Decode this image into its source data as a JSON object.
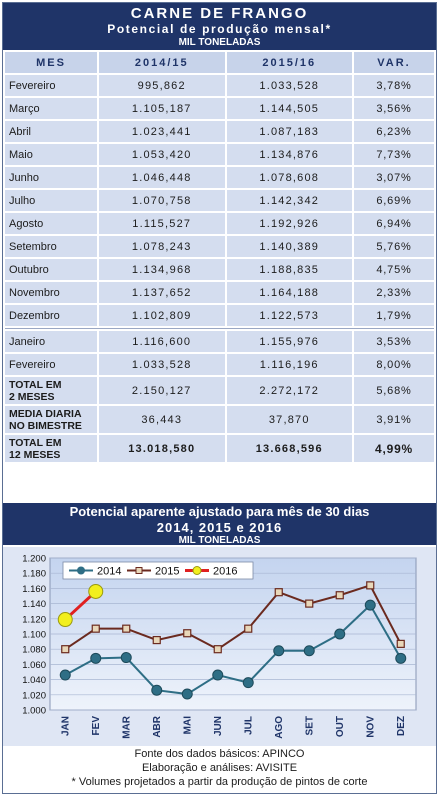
{
  "header": {
    "title": "CARNE DE FRANGO",
    "subtitle": "Potencial de produção mensal*",
    "unit": "MIL TONELADAS"
  },
  "table": {
    "columns": [
      "MES",
      "2014/15",
      "2015/16",
      "VAR."
    ],
    "rows": [
      {
        "mes": "Fevereiro",
        "a": "995,862",
        "b": "1.033,528",
        "var": "3,78%"
      },
      {
        "mes": "Março",
        "a": "1.105,187",
        "b": "1.144,505",
        "var": "3,56%"
      },
      {
        "mes": "Abril",
        "a": "1.023,441",
        "b": "1.087,183",
        "var": "6,23%"
      },
      {
        "mes": "Maio",
        "a": "1.053,420",
        "b": "1.134,876",
        "var": "7,73%"
      },
      {
        "mes": "Junho",
        "a": "1.046,448",
        "b": "1.078,608",
        "var": "3,07%"
      },
      {
        "mes": "Julho",
        "a": "1.070,758",
        "b": "1.142,342",
        "var": "6,69%"
      },
      {
        "mes": "Agosto",
        "a": "1.115,527",
        "b": "1.192,926",
        "var": "6,94%"
      },
      {
        "mes": "Setembro",
        "a": "1.078,243",
        "b": "1.140,389",
        "var": "5,76%"
      },
      {
        "mes": "Outubro",
        "a": "1.134,968",
        "b": "1.188,835",
        "var": "4,75%"
      },
      {
        "mes": "Novembro",
        "a": "1.137,652",
        "b": "1.164,188",
        "var": "2,33%"
      },
      {
        "mes": "Dezembro",
        "a": "1.102,809",
        "b": "1.122,573",
        "var": "1,79%"
      }
    ],
    "rows2": [
      {
        "mes": "Janeiro",
        "a": "1.116,600",
        "b": "1.155,976",
        "var": "3,53%"
      },
      {
        "mes": "Fevereiro",
        "a": "1.033,528",
        "b": "1.116,196",
        "var": "8,00%"
      }
    ],
    "total2": {
      "l1": "TOTAL EM",
      "l2": "2 MESES",
      "a": "2.150,127",
      "b": "2.272,172",
      "var": "5,68%"
    },
    "media": {
      "l1": "MEDIA DIARIA",
      "l2": "NO BIMESTRE",
      "a": "36,443",
      "b": "37,870",
      "var": "3,91%"
    },
    "total12": {
      "l1": "TOTAL EM",
      "l2": "12 MESES",
      "a": "13.018,580",
      "b": "13.668,596",
      "var": "4,99%"
    }
  },
  "chart_header": {
    "title": "Potencial aparente ajustado para mês de 30 dias",
    "years": "2014, 2015 e 2016",
    "unit": "MIL TONELADAS"
  },
  "chart_data": {
    "type": "line",
    "categories": [
      "JAN",
      "FEV",
      "MAR",
      "ABR",
      "MAI",
      "JUN",
      "JUL",
      "AGO",
      "SET",
      "OUT",
      "NOV",
      "DEZ"
    ],
    "ylim": [
      1.0,
      1.2
    ],
    "yticks": [
      "1.000",
      "1.020",
      "1.040",
      "1.060",
      "1.080",
      "1.100",
      "1.120",
      "1.140",
      "1.160",
      "1.180",
      "1.200"
    ],
    "grid": true,
    "legend_position": "top",
    "series": [
      {
        "name": "2014",
        "color": "#2e6e85",
        "marker": "circle",
        "values": [
          1.046,
          1.068,
          1.069,
          1.026,
          1.021,
          1.046,
          1.036,
          1.078,
          1.078,
          1.1,
          1.138,
          1.068
        ]
      },
      {
        "name": "2015",
        "color": "#6b2a1f",
        "marker": "x-square",
        "values": [
          1.08,
          1.107,
          1.107,
          1.092,
          1.101,
          1.08,
          1.107,
          1.155,
          1.14,
          1.151,
          1.164,
          1.087
        ]
      },
      {
        "name": "2016",
        "color": "#e02020",
        "marker": "circle-yellow",
        "values": [
          1.119,
          1.156,
          null,
          null,
          null,
          null,
          null,
          null,
          null,
          null,
          null,
          null
        ]
      }
    ]
  },
  "footer": {
    "source": "Fonte dos dados básicos: APINCO",
    "author": "Elaboração e análises: AVISITE",
    "note": "* Volumes projetados a partir da produção de pintos de corte"
  }
}
